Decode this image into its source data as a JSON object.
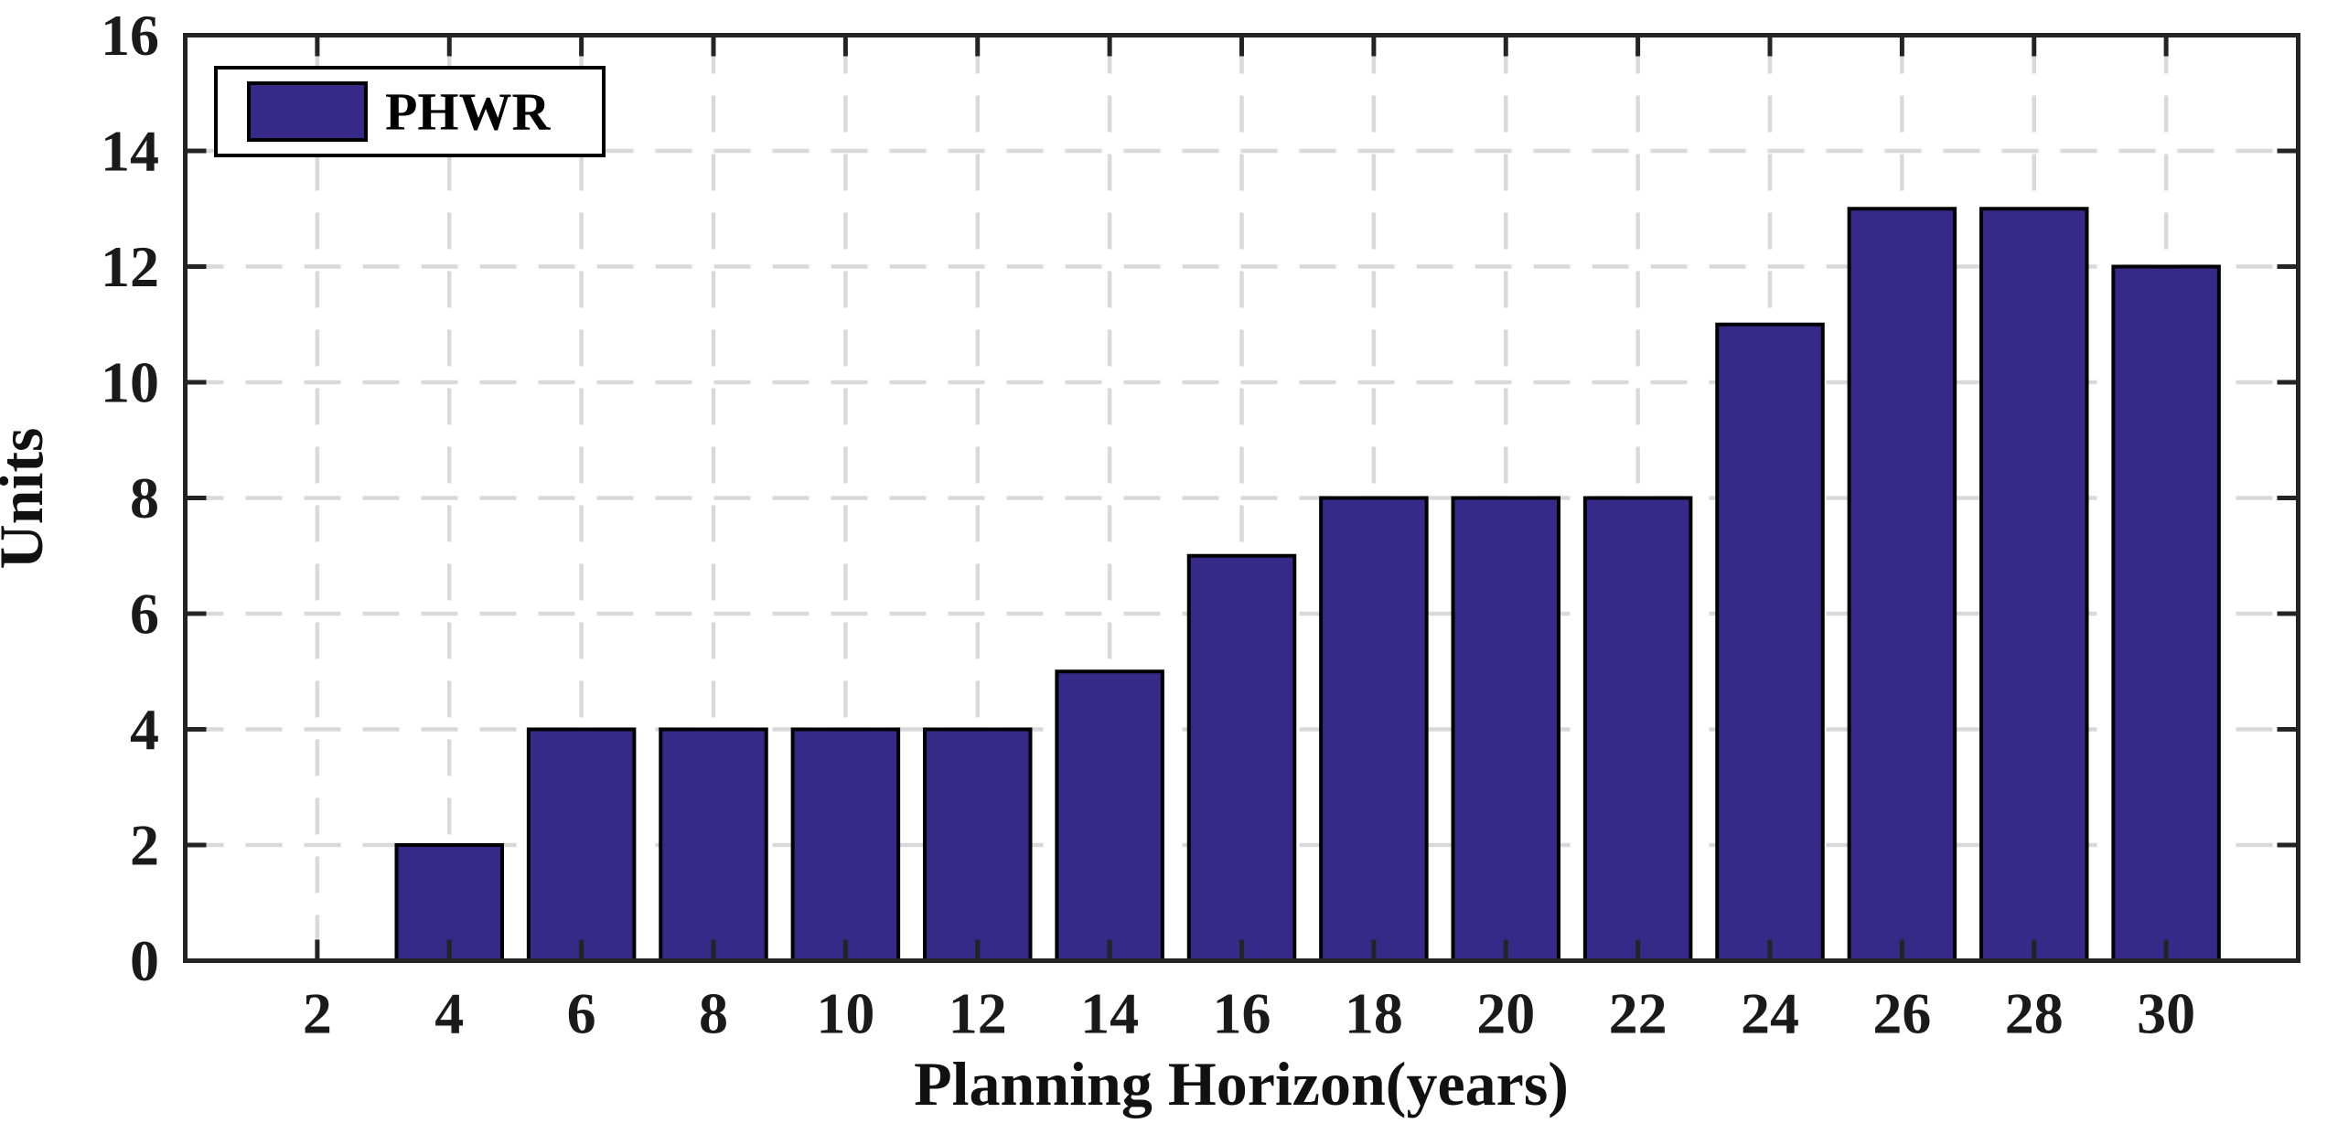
{
  "chart_data": {
    "type": "bar",
    "title": "",
    "xlabel": "Planning Horizon(years)",
    "ylabel": "Units",
    "series_name": "PHWR",
    "categories": [
      2,
      4,
      6,
      8,
      10,
      12,
      14,
      16,
      18,
      20,
      22,
      24,
      26,
      28,
      30
    ],
    "values": [
      0,
      2,
      4,
      4,
      4,
      4,
      5,
      7,
      8,
      8,
      8,
      11,
      13,
      13,
      12
    ],
    "xlim": [
      0,
      32
    ],
    "ylim": [
      0,
      16
    ],
    "xticks": [
      2,
      4,
      6,
      8,
      10,
      12,
      14,
      16,
      18,
      20,
      22,
      24,
      26,
      28,
      30
    ],
    "yticks": [
      0,
      2,
      4,
      6,
      8,
      10,
      12,
      14,
      16
    ],
    "grid": "dashed",
    "legend_position": "upper-left-inside",
    "bar_width_fraction": 0.8,
    "colors": {
      "bar_fill": "#352A87",
      "bar_edge": "#000000",
      "axis": "#242424",
      "grid": "#d9d9d9",
      "text": "#1a1a1a",
      "legend_background": "#ffffff",
      "legend_border": "#000000"
    }
  }
}
